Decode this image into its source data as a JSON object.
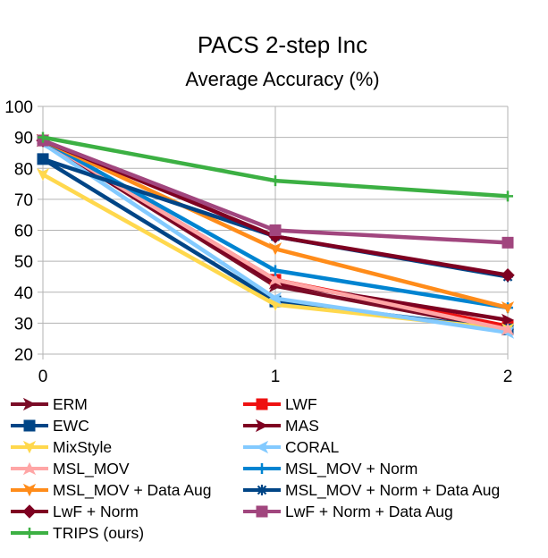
{
  "chart_data": {
    "type": "line",
    "title": "PACS 2-step Inc",
    "subtitle": "Average Accuracy (%)",
    "xlabel": "",
    "ylabel": "",
    "x": [
      0,
      1,
      2
    ],
    "ylim": [
      20,
      100
    ],
    "yticks": [
      20,
      30,
      40,
      50,
      60,
      70,
      80,
      90,
      100
    ],
    "grid": true,
    "legend_position": "bottom",
    "series": [
      {
        "name": "ERM",
        "values": [
          89,
          42,
          28
        ],
        "color": "#7b0c27",
        "marker": "arrow-right"
      },
      {
        "name": "LWF",
        "values": [
          89,
          44,
          29
        ],
        "color": "#ee1111",
        "marker": "square"
      },
      {
        "name": "EWC",
        "values": [
          83,
          37,
          28
        ],
        "color": "#004586",
        "marker": "square"
      },
      {
        "name": "MAS",
        "values": [
          89,
          43,
          31
        ],
        "color": "#7e0021",
        "marker": "arrow-right"
      },
      {
        "name": "MixStyle",
        "values": [
          78,
          36,
          28
        ],
        "color": "#ffd84d",
        "marker": "arrow-down"
      },
      {
        "name": "CORAL",
        "values": [
          88,
          38,
          27
        ],
        "color": "#83caff",
        "marker": "arrow-left"
      },
      {
        "name": "MSL_MOV",
        "values": [
          89,
          44,
          28
        ],
        "color": "#ffa6a6",
        "marker": "arrow-up"
      },
      {
        "name": "MSL_MOV + Norm",
        "values": [
          89,
          47,
          35
        ],
        "color": "#0084d1",
        "marker": "plus"
      },
      {
        "name": "MSL_MOV + Data Aug",
        "values": [
          89,
          54,
          35
        ],
        "color": "#ff8c1a",
        "marker": "arrow-down"
      },
      {
        "name": "MSL_MOV + Norm + Data Aug",
        "values": [
          83,
          58,
          45
        ],
        "color": "#004586",
        "marker": "star"
      },
      {
        "name": "LwF + Norm",
        "values": [
          89,
          58,
          45.5
        ],
        "color": "#7e0021",
        "marker": "diamond"
      },
      {
        "name": "LwF + Norm + Data Aug",
        "values": [
          89,
          60,
          56
        ],
        "color": "#a1467e",
        "marker": "square"
      },
      {
        "name": "TRIPS (ours)",
        "values": [
          90,
          76,
          71
        ],
        "color": "#3cb043",
        "marker": "plus"
      }
    ]
  }
}
